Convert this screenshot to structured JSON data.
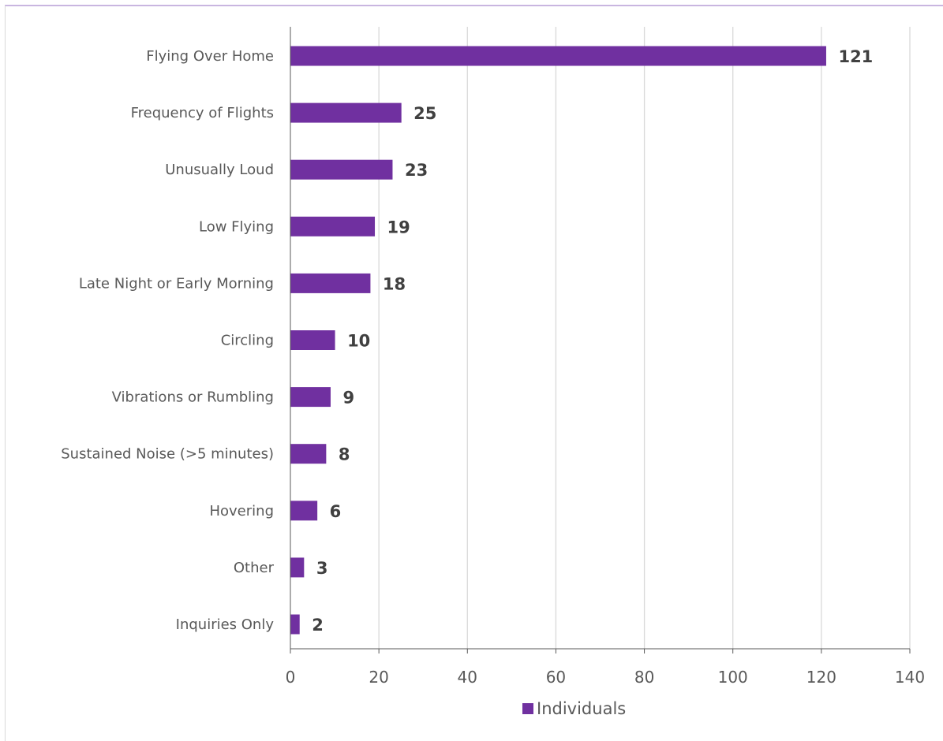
{
  "chart_data": {
    "type": "bar",
    "orientation": "horizontal",
    "categories": [
      "Flying Over Home",
      "Frequency of Flights",
      "Unusually Loud",
      "Low Flying",
      "Late Night or Early Morning",
      "Circling",
      "Vibrations or Rumbling",
      "Sustained Noise (>5 minutes)",
      "Hovering",
      "Other",
      "Inquiries Only"
    ],
    "series": [
      {
        "name": "Individuals",
        "values": [
          121,
          25,
          23,
          19,
          18,
          10,
          9,
          8,
          6,
          3,
          2
        ],
        "color": "#7030a0"
      }
    ],
    "x_ticks": [
      "0",
      "20",
      "40",
      "60",
      "80",
      "100",
      "120",
      "140"
    ],
    "xlim": [
      0,
      140
    ],
    "gridlines": true,
    "legend_position": "bottom",
    "title": "",
    "xlabel": "",
    "ylabel": ""
  }
}
